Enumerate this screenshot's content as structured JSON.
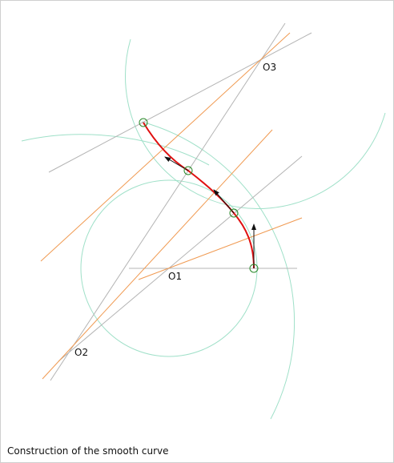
{
  "caption": "Construction of the smooth curve",
  "labels": {
    "o1": "O1",
    "o2": "O2",
    "o3": "O3"
  },
  "colors": {
    "circle": "#9fe0c8",
    "gray_line": "#b4b4b4",
    "orange_line": "#f09a52",
    "curve": "#e01010",
    "marker": "#2a8a2a",
    "arrow": "#111111",
    "frame_border": "#cfcfcf"
  }
}
